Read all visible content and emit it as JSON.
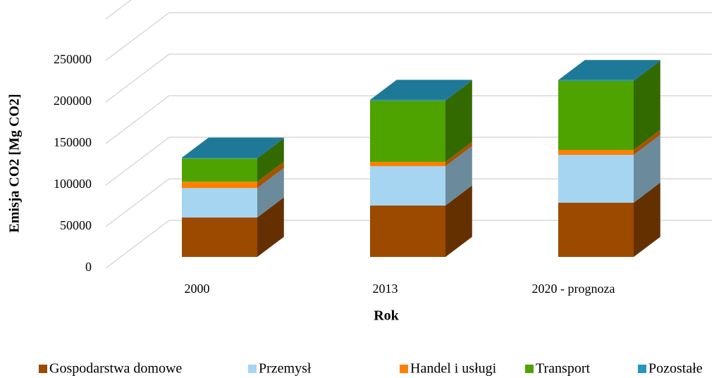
{
  "chart_data": {
    "type": "bar3d_stacked",
    "y_axis_label": "Emisja CO2 [Mg CO2]",
    "x_axis_label": "Rok",
    "categories": [
      "2000",
      "2013",
      "2020 - prognoza"
    ],
    "series": [
      {
        "name": "Gospodarstwa domowe",
        "color": "#9c4a00",
        "values": [
          47500,
          61900,
          65300
        ]
      },
      {
        "name": "Przemysł",
        "color": "#a5d5f0",
        "values": [
          35500,
          47400,
          57600
        ]
      },
      {
        "name": "Handel i usługi",
        "color": "#ff8000",
        "values": [
          7500,
          5100,
          5900
        ]
      },
      {
        "name": "Transport",
        "color": "#4ea300",
        "values": [
          28000,
          73700,
          83100
        ]
      },
      {
        "name": "Pozostałe",
        "color": "#2596be",
        "values": [
          1000,
          1000,
          1000
        ]
      }
    ],
    "ylim": [
      0,
      300000
    ],
    "yticks": [
      0,
      50000,
      100000,
      150000,
      200000,
      250000
    ],
    "grid": true,
    "legend": "bottom"
  }
}
